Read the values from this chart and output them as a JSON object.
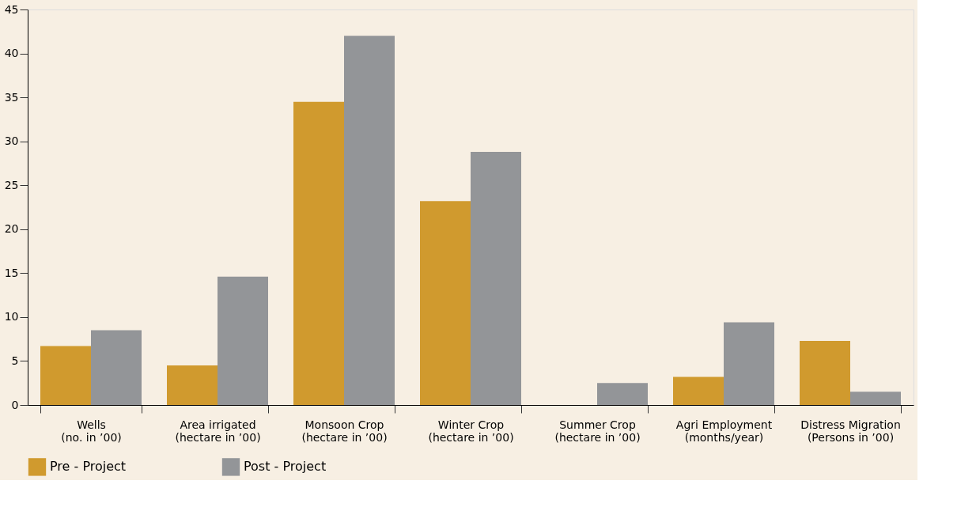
{
  "chart_data": {
    "type": "bar",
    "categories": [
      "Wells\n(no. in ’00)",
      "Area irrigated\n(hectare in ’00)",
      "Monsoon Crop\n(hectare in ’00)",
      "Winter Crop\n(hectare in ’00)",
      "Summer Crop\n(hectare in ’00)",
      "Agri Employment\n(months/year)",
      "Distress Migration\n(Persons in ’00)"
    ],
    "series": [
      {
        "name": "Pre - Project",
        "color": "#d09a2e",
        "values": [
          6.7,
          4.5,
          34.5,
          23.2,
          0,
          3.2,
          7.3
        ]
      },
      {
        "name": "Post - Project",
        "color": "#939598",
        "values": [
          8.5,
          14.6,
          42,
          28.8,
          2.5,
          9.4,
          1.5
        ]
      }
    ],
    "ylim": [
      0,
      45
    ],
    "yticks": [
      0,
      5,
      10,
      15,
      20,
      25,
      30,
      35,
      40,
      45
    ],
    "grid": false,
    "legend": "bottom"
  }
}
